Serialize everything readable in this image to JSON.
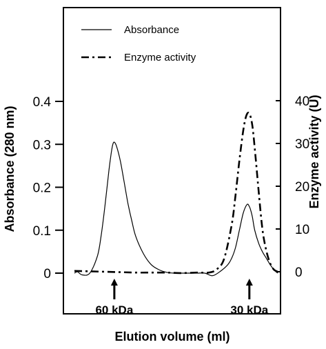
{
  "chart_data": {
    "type": "line",
    "title": "",
    "xlabel": "Elution volume (ml)",
    "ylabel": "Absorbance (280 nm)",
    "y2label": "Enzyme activity (U)",
    "grid": false,
    "legend_placement": "top-left",
    "ylim": [
      -0.12,
      0.4
    ],
    "y2lim": [
      0,
      40
    ],
    "yticks": [
      "0",
      "0.1",
      "0.2",
      "0.3",
      "0.4"
    ],
    "y2ticks": [
      "0",
      "10",
      "20",
      "30",
      "40"
    ],
    "series": [
      {
        "name": "Absorbance",
        "axis": "left",
        "style": "solid",
        "x": [
          0,
          4,
          10,
          20,
          30,
          35,
          40,
          45,
          48,
          50,
          52,
          55,
          60,
          65,
          70,
          75,
          80,
          90,
          100,
          110,
          120,
          130,
          140,
          150,
          160,
          170,
          180,
          190,
          200,
          205,
          210,
          215,
          220,
          225,
          228,
          230,
          232,
          235,
          240,
          245,
          250,
          255,
          260,
          265
        ],
        "y": [
          0,
          0.003,
          -0.004,
          0.0,
          0.04,
          0.09,
          0.16,
          0.24,
          0.28,
          0.3,
          0.305,
          0.295,
          0.26,
          0.21,
          0.16,
          0.12,
          0.085,
          0.045,
          0.02,
          0.008,
          0.002,
          0.0,
          0.0,
          0.0,
          0.0,
          0.0,
          -0.006,
          0.004,
          0.02,
          0.035,
          0.06,
          0.1,
          0.14,
          0.16,
          0.155,
          0.145,
          0.13,
          0.1,
          0.07,
          0.05,
          0.035,
          0.02,
          0.008,
          0.0
        ]
      },
      {
        "name": "Enzyme activity",
        "axis": "right",
        "style": "dash-dot",
        "x": [
          0,
          20,
          40,
          60,
          80,
          100,
          120,
          140,
          160,
          175,
          185,
          195,
          205,
          210,
          215,
          220,
          224,
          228,
          232,
          236,
          240,
          245,
          250,
          255,
          260,
          265
        ],
        "y": [
          0.2,
          0.1,
          0.0,
          -0.1,
          -0.2,
          -0.2,
          -0.2,
          -0.3,
          -0.2,
          -0.2,
          0.5,
          3,
          11,
          18,
          26,
          33,
          36.5,
          37,
          34,
          27,
          19,
          10,
          5,
          2,
          0.5,
          0
        ]
      }
    ],
    "annotations": [
      {
        "text": "60 kDa",
        "x": 52
      },
      {
        "text": "30 kDa",
        "x": 228
      }
    ]
  }
}
